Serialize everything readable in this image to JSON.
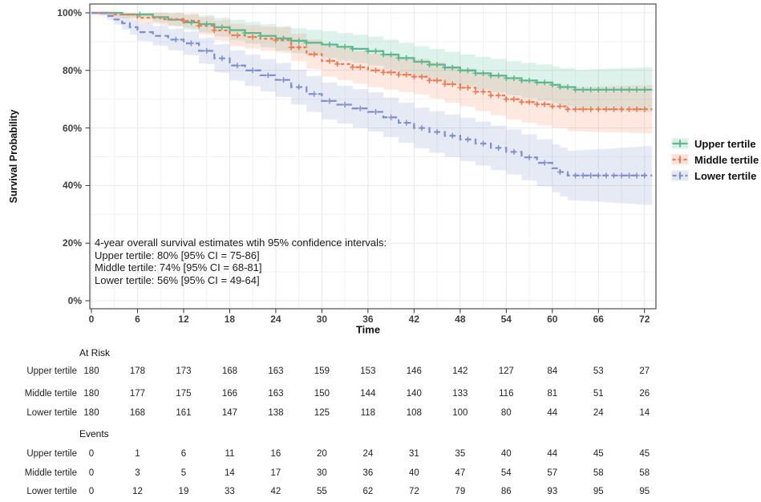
{
  "chart_data": {
    "type": "line",
    "subtype": "kaplan-meier-step-with-ci",
    "title": "",
    "xlabel": "Time",
    "ylabel": "Survival Probability",
    "xlim": [
      0,
      73.5
    ],
    "ylim": [
      0,
      100
    ],
    "grid": true,
    "legend_position": "right",
    "x_ticks": [
      0,
      6,
      12,
      18,
      24,
      30,
      36,
      42,
      48,
      54,
      60,
      66,
      72
    ],
    "y_tick_values": [
      100,
      80,
      60,
      40,
      20,
      0
    ],
    "y_tick_labels": [
      "100%",
      "80%",
      "60%",
      "40%",
      "20%",
      "0%"
    ],
    "series": [
      {
        "name": "Upper tertile",
        "color": "#5cb88e",
        "band_color": "#66C2A5",
        "band_opacity": 0.22,
        "dash": "",
        "steps": [
          [
            0,
            100
          ],
          [
            4,
            99.4
          ],
          [
            8,
            98.5
          ],
          [
            10,
            97.6
          ],
          [
            12,
            96.7
          ],
          [
            14,
            96.1
          ],
          [
            16,
            95
          ],
          [
            18,
            94
          ],
          [
            20,
            93
          ],
          [
            22,
            92
          ],
          [
            24,
            91.1
          ],
          [
            26,
            90.3
          ],
          [
            28,
            89.6
          ],
          [
            30,
            89
          ],
          [
            32,
            88.2
          ],
          [
            34,
            87.5
          ],
          [
            36,
            86.7
          ],
          [
            38,
            85.5
          ],
          [
            40,
            84.3
          ],
          [
            42,
            83
          ],
          [
            44,
            82
          ],
          [
            46,
            81
          ],
          [
            48,
            80
          ],
          [
            50,
            79
          ],
          [
            52,
            78.2
          ],
          [
            54,
            77.3
          ],
          [
            56,
            76.5
          ],
          [
            58,
            75.8
          ],
          [
            60,
            75
          ],
          [
            61,
            74.2
          ],
          [
            63,
            73.3
          ],
          [
            73,
            73.3
          ]
        ],
        "ci_half_width": [
          0.5,
          1.2,
          2.6,
          3.5,
          4.2,
          4.6,
          5,
          5.4,
          5.5,
          5.9,
          6.4,
          7.2,
          7.8
        ],
        "censor_times": [
          6.3,
          13,
          15,
          17,
          20,
          22,
          25,
          27,
          28,
          31,
          33,
          34,
          36,
          37,
          38,
          39,
          40,
          41,
          43,
          44,
          45,
          46,
          47,
          48,
          49,
          50,
          51,
          52,
          53,
          54,
          55,
          56,
          57,
          58,
          59,
          60,
          61,
          62,
          63,
          64,
          65,
          66,
          67,
          68,
          69,
          70,
          71,
          72
        ]
      },
      {
        "name": "Middle tertile",
        "color": "#ee7b51",
        "band_color": "#FC8D62",
        "band_opacity": 0.2,
        "dash": "4,3.5",
        "steps": [
          [
            0,
            100
          ],
          [
            3,
            99.4
          ],
          [
            6,
            98.3
          ],
          [
            9,
            97.8
          ],
          [
            12,
            97.2
          ],
          [
            14,
            95.5
          ],
          [
            16,
            93.9
          ],
          [
            18,
            92.2
          ],
          [
            20,
            91.6
          ],
          [
            22,
            91
          ],
          [
            24,
            90.5
          ],
          [
            26,
            88
          ],
          [
            28,
            85.6
          ],
          [
            30,
            83.3
          ],
          [
            32,
            82.2
          ],
          [
            34,
            81.1
          ],
          [
            36,
            80
          ],
          [
            38,
            79.3
          ],
          [
            40,
            78.5
          ],
          [
            42,
            77.8
          ],
          [
            44,
            76.5
          ],
          [
            46,
            75.2
          ],
          [
            48,
            74
          ],
          [
            50,
            72.6
          ],
          [
            52,
            71.3
          ],
          [
            54,
            70
          ],
          [
            56,
            69
          ],
          [
            58,
            68.2
          ],
          [
            60,
            67.5
          ],
          [
            62,
            66.5
          ],
          [
            73,
            66.5
          ]
        ],
        "ci_half_width": [
          0.5,
          1.9,
          2.4,
          3.9,
          4.3,
          5.4,
          5.8,
          6.1,
          6.5,
          7,
          7.4,
          7.9,
          8.4
        ],
        "censor_times": [
          12,
          14,
          16,
          19,
          21,
          24,
          26,
          27,
          29,
          31,
          32,
          34,
          35,
          37,
          38,
          39,
          40,
          41,
          42,
          43,
          44,
          45,
          46,
          47,
          48,
          49,
          50,
          51,
          52,
          53,
          54,
          55,
          56,
          57,
          58,
          59,
          60,
          61,
          62,
          63,
          64,
          65,
          66,
          67,
          68,
          69,
          70,
          71,
          72
        ]
      },
      {
        "name": "Lower tertile",
        "color": "#8291cb",
        "band_color": "#8DA0CB",
        "band_opacity": 0.22,
        "dash": "7.5,4.5",
        "steps": [
          [
            0,
            100
          ],
          [
            2,
            98.9
          ],
          [
            3,
            97.7
          ],
          [
            4,
            96.4
          ],
          [
            5,
            95
          ],
          [
            6,
            93.3
          ],
          [
            8,
            92
          ],
          [
            10,
            90.7
          ],
          [
            12,
            89.4
          ],
          [
            14,
            86.8
          ],
          [
            16,
            84.2
          ],
          [
            18,
            81.7
          ],
          [
            20,
            80
          ],
          [
            22,
            78.3
          ],
          [
            24,
            76.7
          ],
          [
            26,
            74.2
          ],
          [
            28,
            71.8
          ],
          [
            30,
            69.4
          ],
          [
            32,
            68.1
          ],
          [
            34,
            66.8
          ],
          [
            36,
            65.6
          ],
          [
            38,
            63.7
          ],
          [
            40,
            61.8
          ],
          [
            42,
            60
          ],
          [
            44,
            58.6
          ],
          [
            46,
            57.3
          ],
          [
            48,
            56
          ],
          [
            50,
            54.6
          ],
          [
            52,
            53.1
          ],
          [
            54,
            51.7
          ],
          [
            56,
            49.8
          ],
          [
            58,
            47.9
          ],
          [
            60,
            46
          ],
          [
            61,
            44.7
          ],
          [
            62,
            43.5
          ],
          [
            73,
            43.5
          ]
        ],
        "ci_half_width": [
          0.5,
          3,
          4,
          5.2,
          5.8,
          6.4,
          6.8,
          7,
          7.5,
          7.8,
          8.3,
          9.2,
          10.2
        ],
        "censor_times": [
          11,
          13,
          15,
          17,
          19,
          21,
          23,
          25,
          27,
          29,
          31,
          33,
          35,
          37,
          39,
          41,
          43,
          45,
          47,
          49,
          51,
          53,
          55,
          57,
          59,
          61,
          63,
          64,
          65,
          66,
          67,
          68,
          69,
          70,
          71,
          72
        ]
      }
    ]
  },
  "annotation": {
    "lines": [
      "4-year overall survival estimates wtih 95% confidence intervals:",
      "Upper tertile: 80% [95% CI = 75-86]",
      "Middle tertile: 74% [95% CI = 68-81]",
      "Lower tertile: 56% [95% CI = 49-64]"
    ]
  },
  "risk_table": {
    "times": [
      0,
      6,
      12,
      18,
      24,
      30,
      36,
      42,
      48,
      54,
      60,
      66,
      72
    ],
    "sections": [
      {
        "label": "At Risk",
        "rows": [
          {
            "label": "Upper tertile",
            "values": [
              180,
              178,
              173,
              168,
              163,
              159,
              153,
              146,
              142,
              127,
              84,
              53,
              27
            ]
          },
          {
            "label": "Middle tertile",
            "values": [
              180,
              177,
              175,
              166,
              163,
              150,
              144,
              140,
              133,
              116,
              81,
              51,
              26
            ]
          },
          {
            "label": "Lower tertile",
            "values": [
              180,
              168,
              161,
              147,
              138,
              125,
              118,
              108,
              100,
              80,
              44,
              24,
              14
            ]
          }
        ]
      },
      {
        "label": "Events",
        "rows": [
          {
            "label": "Upper tertile",
            "values": [
              0,
              1,
              6,
              11,
              16,
              20,
              24,
              31,
              35,
              40,
              44,
              45,
              45
            ]
          },
          {
            "label": "Middle tertile",
            "values": [
              0,
              3,
              5,
              14,
              17,
              30,
              36,
              40,
              47,
              54,
              57,
              58,
              58
            ]
          },
          {
            "label": "Lower tertile",
            "values": [
              0,
              12,
              19,
              33,
              42,
              55,
              62,
              72,
              79,
              86,
              93,
              95,
              95
            ]
          }
        ]
      }
    ]
  }
}
